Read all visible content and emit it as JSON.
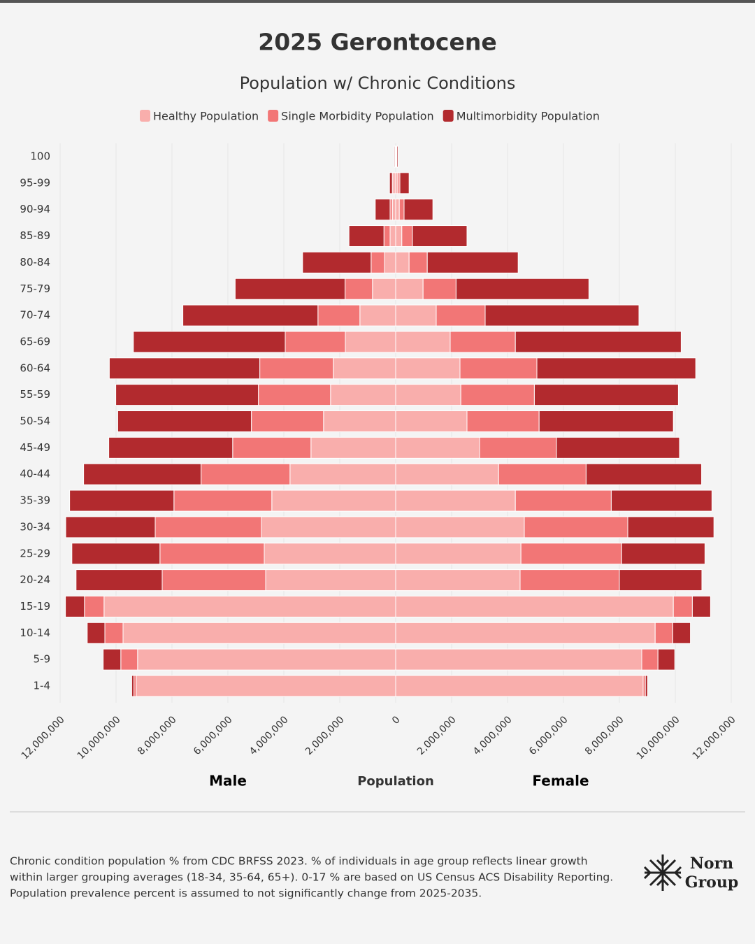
{
  "chart_data": {
    "type": "population-pyramid",
    "title": "2025 Gerontocene",
    "subtitle": "Population w/ Chronic Conditions",
    "xlabel": "Population",
    "left_label": "Male",
    "right_label": "Female",
    "categories": [
      "100",
      "95-99",
      "90-94",
      "85-89",
      "80-84",
      "75-79",
      "70-74",
      "65-69",
      "60-64",
      "55-59",
      "50-54",
      "45-49",
      "40-44",
      "35-39",
      "30-34",
      "25-29",
      "20-24",
      "15-19",
      "10-14",
      "5-9",
      "1-4"
    ],
    "xlim": [
      0,
      12000000
    ],
    "xticks": [
      0,
      {
        "value": 2000000,
        "label": "2,000,000"
      },
      {
        "value": 4000000,
        "label": "4,000,000"
      },
      {
        "value": 6000000,
        "label": "6,000,000"
      },
      {
        "value": 8000000,
        "label": "8,000,000"
      },
      {
        "value": 10000000,
        "label": "10,000,000"
      },
      {
        "value": 12000000,
        "label": "12,000,000"
      }
    ],
    "grid": true,
    "series": [
      {
        "name": "Healthy Population",
        "color": "#f9aeac",
        "left_values": [
          10000,
          70000,
          120000,
          200000,
          400000,
          830000,
          1280000,
          1800000,
          2230000,
          2330000,
          2580000,
          3030000,
          3780000,
          4430000,
          4800000,
          4700000,
          4650000,
          10430000,
          9750000,
          9230000,
          9280000
        ],
        "right_values": [
          20000,
          80000,
          130000,
          220000,
          480000,
          980000,
          1450000,
          1950000,
          2300000,
          2330000,
          2550000,
          3000000,
          3680000,
          4280000,
          4600000,
          4480000,
          4450000,
          9930000,
          9280000,
          8800000,
          8850000
        ]
      },
      {
        "name": "Single Morbidity Population",
        "color": "#f27676",
        "left_values": [
          10000,
          50000,
          80000,
          220000,
          480000,
          980000,
          1500000,
          2150000,
          2630000,
          2580000,
          2580000,
          2800000,
          3180000,
          3500000,
          3800000,
          3730000,
          3700000,
          700000,
          650000,
          600000,
          80000
        ],
        "right_values": [
          20000,
          70000,
          170000,
          380000,
          650000,
          1180000,
          1750000,
          2330000,
          2750000,
          2630000,
          2580000,
          2750000,
          3130000,
          3430000,
          3700000,
          3600000,
          3550000,
          680000,
          630000,
          580000,
          80000
        ]
      },
      {
        "name": "Multimorbidity Population",
        "color": "#b22a2e",
        "left_values": [
          30000,
          100000,
          530000,
          1250000,
          2450000,
          3930000,
          4830000,
          5430000,
          5380000,
          5100000,
          4780000,
          4430000,
          4200000,
          3730000,
          3200000,
          3150000,
          3080000,
          680000,
          630000,
          630000,
          80000
        ],
        "right_values": [
          40000,
          330000,
          1030000,
          1950000,
          3250000,
          4750000,
          5500000,
          5930000,
          5680000,
          5150000,
          4800000,
          4400000,
          4130000,
          3600000,
          3080000,
          2980000,
          2950000,
          650000,
          630000,
          600000,
          80000
        ]
      }
    ]
  },
  "footnote": [
    "Chronic condition population % from CDC BRFSS 2023. % of individuals in age group reflects linear growth",
    "within larger grouping averages (18-34, 35-64, 65+). 0-17 % are based on US Census ACS Disability Reporting.",
    "Population prevalence percent is assumed to not significantly change from 2025-2035."
  ],
  "logo": [
    "Norn",
    "Group"
  ]
}
